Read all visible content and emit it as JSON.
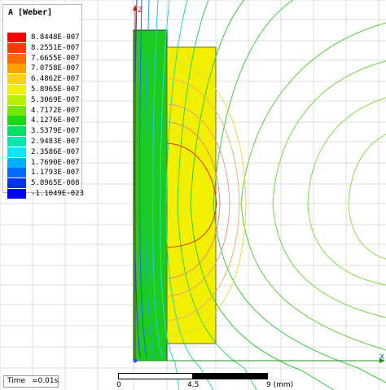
{
  "legend": {
    "title": "A [Weber]",
    "entries": [
      {
        "label": "8.8448E-007",
        "color": "#ff0000"
      },
      {
        "label": "8.2551E-007",
        "color": "#ff3a00"
      },
      {
        "label": "7.6655E-007",
        "color": "#ff6a00"
      },
      {
        "label": "7.0758E-007",
        "color": "#ffa000"
      },
      {
        "label": "6.4862E-007",
        "color": "#ffd400"
      },
      {
        "label": "5.8965E-007",
        "color": "#f0f000"
      },
      {
        "label": "5.3069E-007",
        "color": "#b8f000"
      },
      {
        "label": "4.7172E-007",
        "color": "#72e800"
      },
      {
        "label": "4.1276E-007",
        "color": "#18d818"
      },
      {
        "label": "3.5379E-007",
        "color": "#00e06a"
      },
      {
        "label": "2.9483E-007",
        "color": "#00e8b0"
      },
      {
        "label": "2.3586E-007",
        "color": "#00e8ff"
      },
      {
        "label": "1.7690E-007",
        "color": "#00b0ff"
      },
      {
        "label": "1.1793E-007",
        "color": "#006cff"
      },
      {
        "label": "5.8965E-008",
        "color": "#0030ff"
      },
      {
        "label": "-1.1049E-023",
        "color": "#0000ff"
      }
    ]
  },
  "status": {
    "time_label": "Time",
    "time_value": "=0.01s"
  },
  "scale": {
    "labels": [
      "0",
      "4.5",
      "9 (mm)"
    ]
  },
  "axes": {
    "z_label": "Z",
    "x_label": "X"
  },
  "colors": {
    "outer_region": "#1ccc1c",
    "inner_region": "#f2f000",
    "grid": "#dcdcdc"
  }
}
